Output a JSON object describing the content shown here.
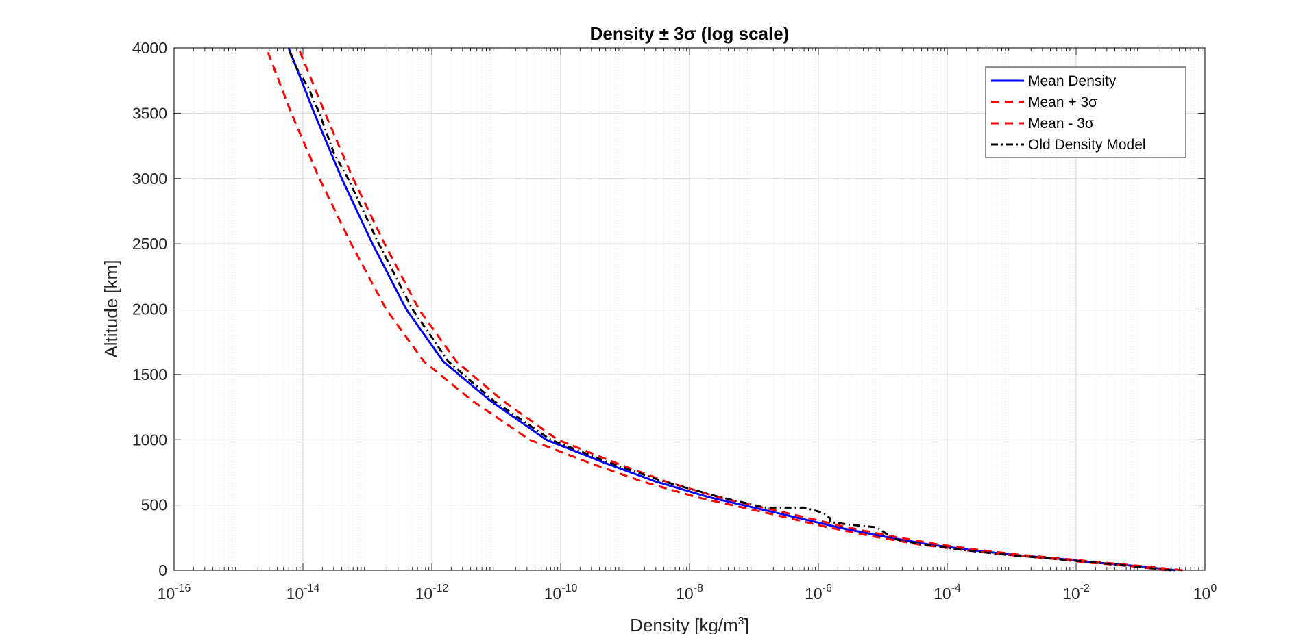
{
  "chart_data": {
    "type": "line",
    "title": "Density ± 3σ (log scale)",
    "xlabel": {
      "main": "Density [kg/m",
      "sup": "3",
      "close": "]"
    },
    "ylabel": "Altitude [km]",
    "x_scale": "log",
    "xlim": [
      1e-16,
      1
    ],
    "ylim": [
      0,
      4000
    ],
    "x_tick_labels": [
      {
        "base": "10",
        "exp": "-16"
      },
      {
        "base": "10",
        "exp": "-14"
      },
      {
        "base": "10",
        "exp": "-12"
      },
      {
        "base": "10",
        "exp": "-10"
      },
      {
        "base": "10",
        "exp": "-8"
      },
      {
        "base": "10",
        "exp": "-6"
      },
      {
        "base": "10",
        "exp": "-4"
      },
      {
        "base": "10",
        "exp": "-2"
      },
      {
        "base": "10",
        "exp": "0"
      }
    ],
    "y_tick_labels": [
      "0",
      "500",
      "1000",
      "1500",
      "2000",
      "2500",
      "3000",
      "3500",
      "4000"
    ],
    "grid": true,
    "legend_position": "top-right",
    "series": [
      {
        "name": "Mean Density",
        "color": "#0000ff",
        "style": "solid",
        "points": [
          [
            0.35,
            0
          ],
          [
            0.1,
            30
          ],
          [
            0.02,
            60
          ],
          [
            0.005,
            90
          ],
          [
            0.001,
            120
          ],
          [
            0.0002,
            160
          ],
          [
            5e-05,
            200
          ],
          [
            1e-05,
            260
          ],
          [
            2e-06,
            330
          ],
          [
            5e-07,
            400
          ],
          [
            1e-07,
            480
          ],
          [
            2e-08,
            560
          ],
          [
            3e-09,
            680
          ],
          [
            5e-10,
            820
          ],
          [
            6e-11,
            1000
          ],
          [
            8e-12,
            1300
          ],
          [
            1.5e-12,
            1600
          ],
          [
            4e-13,
            2000
          ],
          [
            1.2e-13,
            2500
          ],
          [
            4e-14,
            3000
          ],
          [
            1.5e-14,
            3500
          ],
          [
            6e-15,
            4000
          ]
        ]
      },
      {
        "name": "Mean + 3σ",
        "color": "#ff0000",
        "style": "dashed",
        "points": [
          [
            0.45,
            0
          ],
          [
            0.12,
            30
          ],
          [
            0.025,
            60
          ],
          [
            0.006,
            90
          ],
          [
            0.0013,
            120
          ],
          [
            0.00027,
            160
          ],
          [
            7e-05,
            200
          ],
          [
            1.4e-05,
            260
          ],
          [
            2.8e-06,
            330
          ],
          [
            7e-07,
            400
          ],
          [
            1.4e-07,
            480
          ],
          [
            2.8e-08,
            560
          ],
          [
            4.3e-09,
            680
          ],
          [
            7.4e-10,
            820
          ],
          [
            9e-11,
            1000
          ],
          [
            1.25e-11,
            1300
          ],
          [
            2.4e-12,
            1600
          ],
          [
            6.3e-13,
            2000
          ],
          [
            1.85e-13,
            2500
          ],
          [
            6e-14,
            3000
          ],
          [
            2.2e-14,
            3500
          ],
          [
            8.5e-15,
            4000
          ]
        ]
      },
      {
        "name": "Mean - 3σ",
        "color": "#ff0000",
        "style": "dashed",
        "points": [
          [
            0.25,
            0
          ],
          [
            0.08,
            30
          ],
          [
            0.015,
            60
          ],
          [
            0.004,
            90
          ],
          [
            0.0008,
            120
          ],
          [
            0.00015,
            160
          ],
          [
            3.5e-05,
            200
          ],
          [
            7e-06,
            260
          ],
          [
            1.4e-06,
            330
          ],
          [
            3.5e-07,
            400
          ],
          [
            6.8e-08,
            480
          ],
          [
            1.3e-08,
            560
          ],
          [
            1.85e-09,
            680
          ],
          [
            2.9e-10,
            820
          ],
          [
            3.3e-11,
            1000
          ],
          [
            4.2e-12,
            1300
          ],
          [
            7.5e-13,
            1600
          ],
          [
            1.95e-13,
            2000
          ],
          [
            5.6e-14,
            2500
          ],
          [
            1.8e-14,
            3000
          ],
          [
            6.6e-15,
            3500
          ],
          [
            2.7e-15,
            4000
          ]
        ]
      },
      {
        "name": "Old Density Model",
        "color": "#000000",
        "style": "dashdot",
        "points": [
          [
            0.3,
            0
          ],
          [
            0.08,
            30
          ],
          [
            0.02,
            60
          ],
          [
            0.004,
            90
          ],
          [
            0.0008,
            120
          ],
          [
            0.00015,
            160
          ],
          [
            4e-05,
            200
          ],
          [
            1.5e-05,
            240
          ],
          [
            8e-06,
            330
          ],
          [
            3e-06,
            350
          ],
          [
            1.5e-06,
            370
          ],
          [
            1.5e-06,
            400
          ],
          [
            1.2e-06,
            440
          ],
          [
            6e-07,
            480
          ],
          [
            1.5e-07,
            480
          ],
          [
            3e-08,
            560
          ],
          [
            4e-09,
            680
          ],
          [
            6e-10,
            820
          ],
          [
            7e-11,
            1000
          ],
          [
            9e-12,
            1300
          ],
          [
            1.8e-12,
            1600
          ],
          [
            5e-13,
            2000
          ],
          [
            1.5e-13,
            2500
          ],
          [
            5e-14,
            3000
          ],
          [
            3e-14,
            3200
          ],
          [
            1.8e-14,
            3500
          ],
          [
            1.2e-14,
            3700
          ],
          [
            9e-15,
            3800
          ],
          [
            7e-15,
            3900
          ],
          [
            6e-15,
            4000
          ]
        ]
      }
    ]
  }
}
